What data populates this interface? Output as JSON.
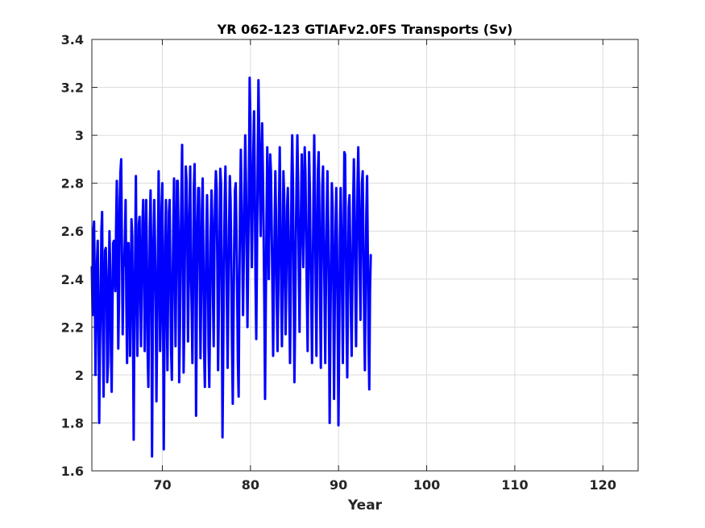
{
  "chart_data": {
    "type": "line",
    "title": "YR 062-123 GTIAFv2.0FS Transports (Sv)",
    "xlabel": "Year",
    "ylabel": "",
    "xlim": [
      62,
      124
    ],
    "ylim": [
      1.6,
      3.4
    ],
    "xticks": [
      70,
      80,
      90,
      100,
      110,
      120
    ],
    "xtick_labels": [
      "70",
      "80",
      "90",
      "100",
      "110",
      "120"
    ],
    "yticks": [
      1.6,
      1.8,
      2.0,
      2.2,
      2.4,
      2.6,
      2.8,
      3.0,
      3.2,
      3.4
    ],
    "ytick_labels": [
      "1.6",
      "1.8",
      "2",
      "2.2",
      "2.4",
      "2.6",
      "2.8",
      "3",
      "3.2",
      "3.4"
    ],
    "grid": true,
    "legend": "none",
    "line_color": "#0000ff",
    "series": [
      {
        "x_start": 62,
        "x_step": 0.0833,
        "values": [
          2.45,
          2.25,
          2.6,
          2.64,
          2.38,
          2.0,
          2.22,
          2.47,
          2.56,
          2.27,
          1.8,
          2.1,
          2.3,
          2.6,
          2.68,
          2.22,
          1.91,
          2.3,
          2.52,
          2.53,
          2.4,
          1.97,
          2.05,
          2.35,
          2.6,
          2.44,
          2.1,
          1.93,
          2.25,
          2.55,
          2.56,
          2.42,
          2.35,
          2.61,
          2.81,
          2.55,
          2.11,
          2.31,
          2.73,
          2.85,
          2.9,
          2.51,
          2.17,
          2.45,
          2.46,
          2.57,
          2.73,
          2.3,
          2.05,
          2.55,
          2.55,
          2.41,
          2.08,
          2.31,
          2.65,
          2.58,
          2.21,
          1.73,
          2.24,
          2.5,
          2.83,
          2.35,
          2.08,
          2.3,
          2.63,
          2.66,
          2.42,
          2.12,
          2.39,
          2.64,
          2.73,
          2.5,
          2.1,
          2.42,
          2.73,
          2.5,
          2.1,
          1.95,
          2.28,
          2.62,
          2.77,
          2.5,
          1.66,
          2.18,
          2.55,
          2.73,
          2.55,
          2.3,
          1.89,
          2.2,
          2.5,
          2.85,
          2.55,
          2.1,
          2.25,
          2.7,
          2.8,
          2.3,
          1.69,
          2.2,
          2.55,
          2.73,
          2.3,
          2.02,
          2.4,
          2.68,
          2.73,
          2.4,
          2.1,
          1.98,
          2.35,
          2.62,
          2.82,
          2.46,
          2.12,
          2.45,
          2.81,
          2.81,
          2.6,
          1.97,
          2.2,
          2.52,
          2.75,
          2.96,
          2.5,
          2.01,
          2.22,
          2.6,
          2.87,
          2.81,
          2.59,
          2.14,
          2.4,
          2.66,
          2.87,
          2.44,
          2.28,
          2.05,
          2.4,
          2.78,
          2.88,
          2.51,
          1.83,
          2.28,
          2.64,
          2.78,
          2.78,
          2.43,
          2.07,
          2.35,
          2.69,
          2.82,
          2.49,
          2.1,
          1.95,
          2.3,
          2.58,
          2.75,
          2.55,
          2.12,
          1.95,
          2.22,
          2.61,
          2.77,
          2.65,
          2.33,
          2.12,
          2.54,
          2.75,
          2.85,
          2.78,
          2.46,
          2.02,
          2.27,
          2.54,
          2.86,
          2.8,
          2.36,
          1.74,
          2.1,
          2.46,
          2.73,
          2.87,
          2.63,
          2.3,
          2.03,
          2.33,
          2.62,
          2.83,
          2.73,
          2.45,
          2.12,
          1.88,
          2.23,
          2.55,
          2.77,
          2.8,
          2.6,
          2.35,
          2.05,
          1.91,
          2.38,
          2.72,
          2.94,
          2.74,
          2.52,
          2.25,
          2.48,
          2.77,
          3.0,
          2.8,
          2.51,
          2.2,
          2.49,
          2.8,
          3.24,
          3.05,
          2.65,
          2.45,
          2.7,
          2.93,
          3.1,
          2.81,
          2.39,
          2.15,
          2.5,
          2.9,
          3.23,
          3.0,
          2.76,
          2.58,
          2.88,
          3.05,
          2.86,
          2.6,
          2.3,
          1.9,
          2.3,
          2.65,
          2.95,
          2.75,
          2.4,
          2.68,
          2.92,
          2.85,
          2.62,
          2.37,
          2.08,
          2.35,
          2.6,
          2.85,
          2.65,
          2.3,
          2.1,
          2.35,
          2.7,
          2.95,
          2.65,
          2.35,
          2.12,
          2.4,
          2.85,
          2.75,
          2.45,
          2.17,
          2.42,
          2.7,
          2.78,
          2.6,
          2.3,
          2.05,
          2.35,
          2.8,
          3.0,
          2.8,
          2.4,
          1.97,
          2.25,
          2.58,
          2.82,
          3.0,
          2.8,
          2.43,
          2.18,
          2.52,
          2.7,
          2.92,
          2.62,
          2.45,
          2.73,
          2.95,
          2.85,
          2.58,
          2.32,
          2.1,
          2.5,
          2.93,
          2.78,
          2.48,
          2.3,
          2.05,
          2.42,
          2.75,
          3.0,
          2.75,
          2.38,
          2.08,
          2.48,
          2.85,
          2.93,
          2.68,
          2.3,
          2.03,
          2.45,
          2.79,
          2.87,
          2.6,
          2.34,
          2.05,
          2.4,
          2.68,
          2.85,
          2.63,
          2.28,
          1.8,
          2.2,
          2.5,
          2.8,
          2.7,
          2.38,
          1.9,
          2.3,
          2.6,
          2.78,
          2.55,
          2.2,
          1.79,
          2.15,
          2.55,
          2.78,
          2.6,
          2.32,
          2.05,
          2.5,
          2.93,
          2.92,
          2.6,
          2.22,
          1.99,
          2.35,
          2.7,
          2.75,
          2.52,
          2.25,
          2.08,
          2.4,
          2.7,
          2.9,
          2.7,
          2.38,
          2.12,
          2.47,
          2.8,
          2.95,
          2.75,
          2.45,
          2.23,
          2.58,
          2.8,
          2.85,
          2.55,
          2.25,
          2.02,
          2.38,
          2.68,
          2.83,
          2.5,
          2.14,
          1.94,
          2.35,
          2.5
        ]
      }
    ]
  }
}
